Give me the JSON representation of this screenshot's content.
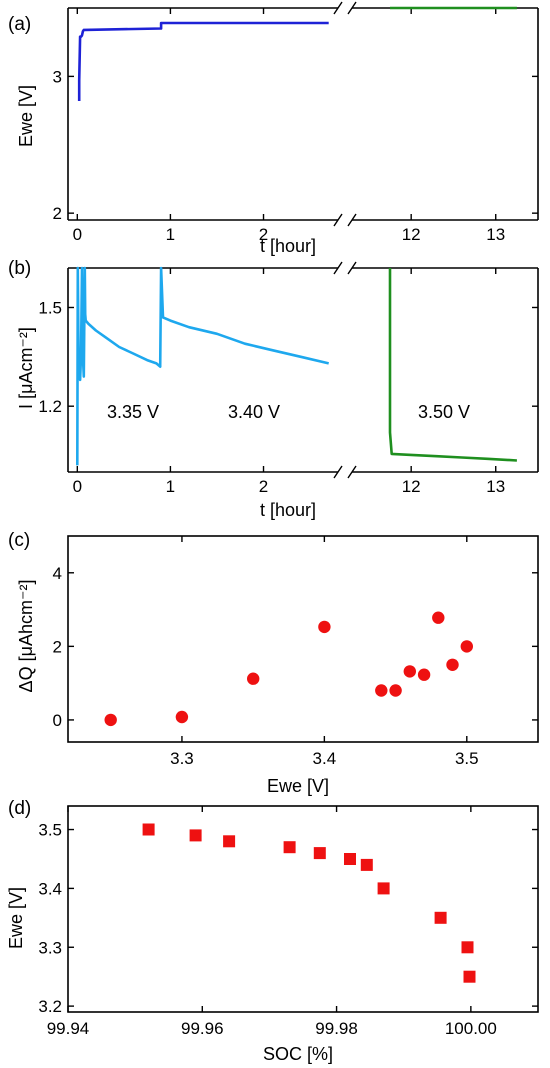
{
  "colors": {
    "blue": "#1e22d6",
    "lightblue": "#1ea8ee",
    "green": "#1f8f1f",
    "red": "#ee1111",
    "axis": "#000000"
  },
  "chart_data": [
    {
      "panel": "(a)",
      "type": "line",
      "xlabel": "t [hour]",
      "ylabel": "Ewe  [V]",
      "x_break": true,
      "xlim_left": [
        -0.1,
        2.8
      ],
      "xlim_right": [
        11.3,
        13.5
      ],
      "ylim": [
        1.95,
        3.5
      ],
      "xticks_left": [
        0,
        1,
        2
      ],
      "xticks_right": [
        12,
        13
      ],
      "yticks": [
        2,
        3
      ],
      "series": [
        {
          "color": "blue",
          "x": [
            0.02,
            0.02,
            0.03,
            0.04,
            0.05,
            0.06,
            0.07,
            0.08,
            0.9,
            0.9,
            2.7
          ],
          "y": [
            2.82,
            2.97,
            3.29,
            3.29,
            3.3,
            3.33,
            3.34,
            3.34,
            3.35,
            3.39,
            3.39
          ]
        },
        {
          "color": "green",
          "x": [
            11.75,
            13.25
          ],
          "y": [
            3.5,
            3.5
          ]
        }
      ]
    },
    {
      "panel": "(b)",
      "type": "line",
      "xlabel": "t [hour]",
      "ylabel": "I  [μAcm⁻²]",
      "x_break": true,
      "xlim_left": [
        -0.1,
        2.8
      ],
      "xlim_right": [
        11.3,
        13.5
      ],
      "ylim": [
        1.0,
        1.62
      ],
      "xticks_left": [
        0,
        1,
        2
      ],
      "xticks_right": [
        12,
        13
      ],
      "yticks": [
        1.2,
        1.5
      ],
      "annotations": [
        "3.35 V",
        "3.40 V",
        "3.50 V"
      ],
      "series": [
        {
          "color": "lightblue",
          "x": [
            0.0,
            0.005,
            0.015,
            0.03,
            0.04,
            0.05,
            0.06,
            0.07,
            0.08,
            0.085,
            0.09,
            0.12,
            0.2,
            0.3,
            0.45,
            0.6,
            0.75,
            0.85,
            0.89,
            0.9,
            0.92,
            1.0,
            1.2,
            1.5,
            1.8,
            2.1,
            2.4,
            2.7
          ],
          "y": [
            1.02,
            1.62,
            1.3,
            1.28,
            1.35,
            1.62,
            1.35,
            1.29,
            1.62,
            1.48,
            1.46,
            1.45,
            1.43,
            1.41,
            1.38,
            1.36,
            1.34,
            1.33,
            1.32,
            1.62,
            1.47,
            1.46,
            1.44,
            1.42,
            1.39,
            1.37,
            1.35,
            1.33
          ]
        },
        {
          "color": "green",
          "x": [
            11.75,
            11.75,
            11.77,
            12.0,
            12.3,
            12.6,
            12.9,
            13.25
          ],
          "y": [
            1.62,
            1.12,
            1.055,
            1.052,
            1.048,
            1.044,
            1.04,
            1.035
          ]
        }
      ]
    },
    {
      "panel": "(c)",
      "type": "scatter",
      "marker": "circle",
      "xlabel": "Ewe [V]",
      "ylabel": "ΔQ  [μAhcm⁻²]",
      "xlim": [
        3.22,
        3.55
      ],
      "ylim": [
        -0.6,
        5.0
      ],
      "xticks": [
        3.3,
        3.4,
        3.5
      ],
      "yticks": [
        0,
        2,
        4
      ],
      "series": [
        {
          "color": "red",
          "x": [
            3.25,
            3.3,
            3.35,
            3.4,
            3.44,
            3.45,
            3.46,
            3.47,
            3.48,
            3.49,
            3.5
          ],
          "y": [
            0.0,
            0.08,
            1.12,
            2.53,
            0.8,
            0.8,
            1.32,
            1.23,
            2.78,
            1.5,
            2.0
          ]
        }
      ]
    },
    {
      "panel": "(d)",
      "type": "scatter",
      "marker": "square",
      "xlabel": "SOC [%]",
      "ylabel": "Ewe [V]",
      "xlim": [
        99.94,
        100.01
      ],
      "ylim": [
        3.19,
        3.54
      ],
      "xticks": [
        99.94,
        99.96,
        99.98,
        100.0
      ],
      "xtick_labels": [
        "99.94",
        "99.96",
        "99.98",
        "100.00"
      ],
      "yticks": [
        3.2,
        3.3,
        3.4,
        3.5
      ],
      "series": [
        {
          "color": "red",
          "x": [
            99.952,
            99.959,
            99.964,
            99.973,
            99.9775,
            99.982,
            99.9845,
            99.987,
            99.9955,
            99.9995,
            99.9998
          ],
          "y": [
            3.5,
            3.49,
            3.48,
            3.47,
            3.46,
            3.45,
            3.44,
            3.4,
            3.35,
            3.3,
            3.25
          ]
        }
      ]
    }
  ]
}
